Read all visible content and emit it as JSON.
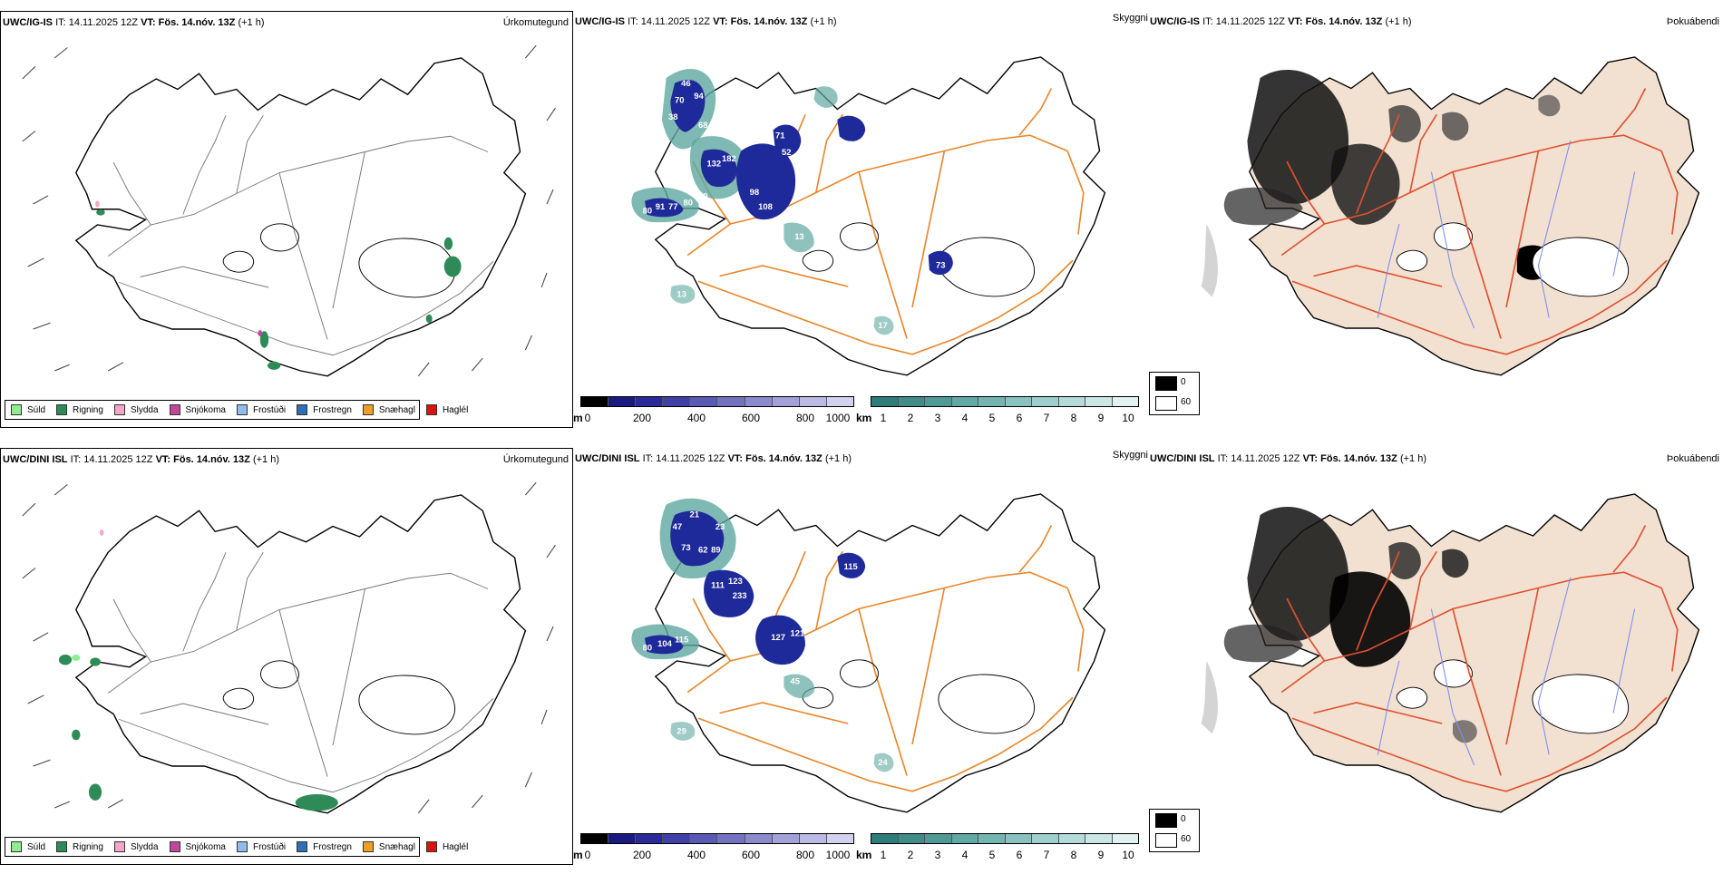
{
  "rows": [
    {
      "model": "UWC/IG-IS",
      "it_label": "IT:",
      "it_value": "14.11.2025 12Z",
      "vt_label": "VT:",
      "vt_value": "Fös. 14.nóv. 13Z",
      "offset": "(+1 h)",
      "panel_titles": [
        "Úrkomutegund",
        "Skyggni",
        "Þokuábendi"
      ],
      "visibility_labels": [
        "46",
        "70",
        "94",
        "68",
        "97",
        "38",
        "132",
        "182",
        "71",
        "52",
        "80",
        "91",
        "77",
        "80",
        "60",
        "18",
        "108",
        "98",
        "108",
        "52",
        "73",
        "13",
        "13",
        "17"
      ]
    },
    {
      "model": "UWC/DINI ISL",
      "it_label": "IT:",
      "it_value": "14.11.2025 12Z",
      "vt_label": "VT:",
      "vt_value": "Fös. 14.nóv. 13Z",
      "offset": "(+1 h)",
      "panel_titles": [
        "Úrkomutegund",
        "Skyggni",
        "Þokuábendi"
      ],
      "visibility_labels": [
        "21",
        "47",
        "23",
        "73",
        "62",
        "89",
        "111",
        "123",
        "233",
        "110",
        "115",
        "127",
        "121",
        "50",
        "80",
        "104",
        "115",
        "45",
        "29",
        "24"
      ]
    }
  ],
  "precip_legend": [
    {
      "label": "Súld",
      "color": "#90ee90"
    },
    {
      "label": "Rigning",
      "color": "#2e8b57"
    },
    {
      "label": "Slydda",
      "color": "#f4a6c8"
    },
    {
      "label": "Snjókoma",
      "color": "#c0479a"
    },
    {
      "label": "Frostúði",
      "color": "#8fbcea"
    },
    {
      "label": "Frostregn",
      "color": "#2f6fb5"
    },
    {
      "label": "Snæhagl",
      "color": "#f0a020"
    },
    {
      "label": "Haglél",
      "color": "#e01010"
    }
  ],
  "vis_m_bar": {
    "unit": "m",
    "ticks": [
      "0",
      "200",
      "400",
      "600",
      "800",
      "1000"
    ],
    "colors": [
      "#000000",
      "#1a1a80",
      "#2a2a9a",
      "#4040a8",
      "#5a5ab4",
      "#7272c0",
      "#8a8acc",
      "#a2a2d8",
      "#babae4",
      "#d2d2ee"
    ]
  },
  "vis_km_bar": {
    "unit": "km",
    "ticks": [
      "1",
      "2",
      "3",
      "4",
      "5",
      "6",
      "7",
      "8",
      "9",
      "10"
    ],
    "colors": [
      "#2e7d7a",
      "#3f8c88",
      "#509a96",
      "#62a8a4",
      "#75b5b1",
      "#89c2bf",
      "#9ecfcc",
      "#b4dbd9",
      "#cae7e5",
      "#e2f2f1"
    ]
  },
  "fog_legend": {
    "items": [
      {
        "label": "0",
        "color": "#000000"
      },
      {
        "label": "60",
        "color": "#ffffff"
      }
    ]
  },
  "colors": {
    "land_fill": "#f2e1d1",
    "roads_orange": "#e8872a",
    "roads_red": "#e05030",
    "rivers": "#7b8ff0",
    "coast": "#000000",
    "vis_dark": "#1f2a9a",
    "vis_teal": "#5fa8a0",
    "rain": "#2e8b57"
  }
}
